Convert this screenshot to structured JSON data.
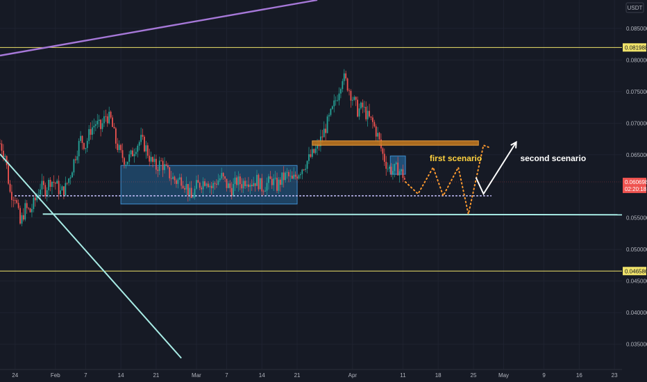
{
  "chart_data": {
    "type": "candlestick",
    "currency_badge": "USDT",
    "colors": {
      "background": "#161a25",
      "grid": "#1f2330",
      "up": "#26a69a",
      "down": "#ef5350",
      "yellow_level": "#f0e36a",
      "support_line": "#a8ece6",
      "purple_trend": "#a678d8",
      "range_box": "#2a7ab8",
      "resistance_box": "#c57a1f",
      "scenario_one": "#ff9a2f",
      "scenario_two": "#ffffff",
      "dotted_level": "#c9c3ff"
    },
    "y_axis": {
      "min": 0.031,
      "max": 0.0895,
      "ticks": [
        "0.085000",
        "0.080000",
        "0.075000",
        "0.070000",
        "0.065000",
        "0.055000",
        "0.050000",
        "0.045000",
        "0.040000",
        "0.035000"
      ],
      "tick_values": [
        0.085,
        0.08,
        0.075,
        0.07,
        0.065,
        0.055,
        0.05,
        0.045,
        0.04,
        0.035
      ]
    },
    "x_axis": {
      "ticks": [
        {
          "label": "24",
          "day": 0
        },
        {
          "label": "Feb",
          "day": 8
        },
        {
          "label": "7",
          "day": 14
        },
        {
          "label": "14",
          "day": 21
        },
        {
          "label": "21",
          "day": 28
        },
        {
          "label": "Mar",
          "day": 36
        },
        {
          "label": "7",
          "day": 42
        },
        {
          "label": "14",
          "day": 49
        },
        {
          "label": "21",
          "day": 56
        },
        {
          "label": "Apr",
          "day": 67
        },
        {
          "label": "11",
          "day": 77
        },
        {
          "label": "18",
          "day": 84
        },
        {
          "label": "25",
          "day": 91
        },
        {
          "label": "May",
          "day": 97
        },
        {
          "label": "9",
          "day": 105
        },
        {
          "label": "16",
          "day": 112
        },
        {
          "label": "23",
          "day": 119
        }
      ],
      "day_min": -3,
      "day_max": 120.5
    },
    "price_tags": [
      {
        "label": "0.081988",
        "value": 0.081988,
        "style": "yellow"
      },
      {
        "label": "0.046586",
        "value": 0.046586,
        "style": "yellow"
      },
      {
        "label": "0.060698",
        "value": 0.060698,
        "style": "red"
      }
    ],
    "countdown": "02:20:18",
    "last_price": 0.060698,
    "candles_by_day": [
      [
        -3,
        0.0668
      ],
      [
        -2,
        0.065
      ],
      [
        -1,
        0.059
      ],
      [
        0,
        0.0585
      ],
      [
        1,
        0.054
      ],
      [
        2,
        0.0565
      ],
      [
        3,
        0.056
      ],
      [
        4,
        0.0578
      ],
      [
        5,
        0.06
      ],
      [
        6,
        0.0595
      ],
      [
        7,
        0.061
      ],
      [
        8,
        0.0605
      ],
      [
        9,
        0.059
      ],
      [
        10,
        0.0598
      ],
      [
        11,
        0.062
      ],
      [
        12,
        0.065
      ],
      [
        13,
        0.0675
      ],
      [
        14,
        0.0665
      ],
      [
        15,
        0.069
      ],
      [
        16,
        0.07
      ],
      [
        17,
        0.0692
      ],
      [
        18,
        0.0712
      ],
      [
        19,
        0.0705
      ],
      [
        20,
        0.067
      ],
      [
        21,
        0.065
      ],
      [
        22,
        0.064
      ],
      [
        23,
        0.0648
      ],
      [
        24,
        0.0665
      ],
      [
        25,
        0.0673
      ],
      [
        26,
        0.066
      ],
      [
        27,
        0.064
      ],
      [
        28,
        0.063
      ],
      [
        29,
        0.0638
      ],
      [
        30,
        0.0625
      ],
      [
        31,
        0.0615
      ],
      [
        32,
        0.0608
      ],
      [
        33,
        0.0612
      ],
      [
        34,
        0.06
      ],
      [
        35,
        0.058
      ],
      [
        36,
        0.06
      ],
      [
        37,
        0.0605
      ],
      [
        38,
        0.0612
      ],
      [
        39,
        0.0598
      ],
      [
        40,
        0.0608
      ],
      [
        41,
        0.0615
      ],
      [
        42,
        0.0602
      ],
      [
        43,
        0.0595
      ],
      [
        44,
        0.0608
      ],
      [
        45,
        0.0604
      ],
      [
        46,
        0.0612
      ],
      [
        47,
        0.0606
      ],
      [
        48,
        0.061
      ],
      [
        49,
        0.0598
      ],
      [
        50,
        0.0604
      ],
      [
        51,
        0.061
      ],
      [
        52,
        0.06
      ],
      [
        53,
        0.0612
      ],
      [
        54,
        0.0618
      ],
      [
        55,
        0.0608
      ],
      [
        56,
        0.062
      ],
      [
        57,
        0.063
      ],
      [
        58,
        0.064
      ],
      [
        59,
        0.065
      ],
      [
        60,
        0.066
      ],
      [
        61,
        0.068
      ],
      [
        62,
        0.07
      ],
      [
        63,
        0.072
      ],
      [
        64,
        0.0745
      ],
      [
        65,
        0.0775
      ],
      [
        66,
        0.076
      ],
      [
        67,
        0.074
      ],
      [
        68,
        0.072
      ],
      [
        69,
        0.0725
      ],
      [
        70,
        0.071
      ],
      [
        71,
        0.07
      ],
      [
        72,
        0.068
      ],
      [
        73,
        0.065
      ],
      [
        74,
        0.063
      ],
      [
        75,
        0.0625
      ],
      [
        76,
        0.0628
      ],
      [
        77,
        0.0618
      ],
      [
        77.5,
        0.0607
      ]
    ],
    "annotations": {
      "first_scenario_label": "first scenario",
      "second_scenario_label": "second scenario",
      "dotted_level": 0.0585,
      "support_level": 0.0556,
      "range_box": {
        "day_start": 21,
        "day_end": 56,
        "top": 0.0633,
        "bottom": 0.0572
      },
      "small_box": {
        "day_start": 74.5,
        "day_end": 77.5,
        "top": 0.0648,
        "bottom": 0.0619
      },
      "resistance_box": {
        "day_start": 59,
        "day_end": 92,
        "top": 0.0672,
        "bottom": 0.0665
      },
      "scenario_one_path": [
        [
          77.5,
          0.0607
        ],
        [
          80,
          0.0588
        ],
        [
          83,
          0.063
        ],
        [
          85,
          0.0585
        ],
        [
          88,
          0.063
        ],
        [
          90,
          0.0556
        ],
        [
          93,
          0.0665
        ],
        [
          94,
          0.0662
        ]
      ],
      "scenario_two_path": [
        [
          91.5,
          0.0614
        ],
        [
          93,
          0.0588
        ],
        [
          99.5,
          0.067
        ]
      ],
      "purple_trend": [
        [
          -3,
          0.0807
        ],
        [
          60,
          0.0895
        ]
      ],
      "descending_line": [
        [
          -3,
          0.0651
        ],
        [
          33,
          0.0328
        ]
      ]
    }
  }
}
